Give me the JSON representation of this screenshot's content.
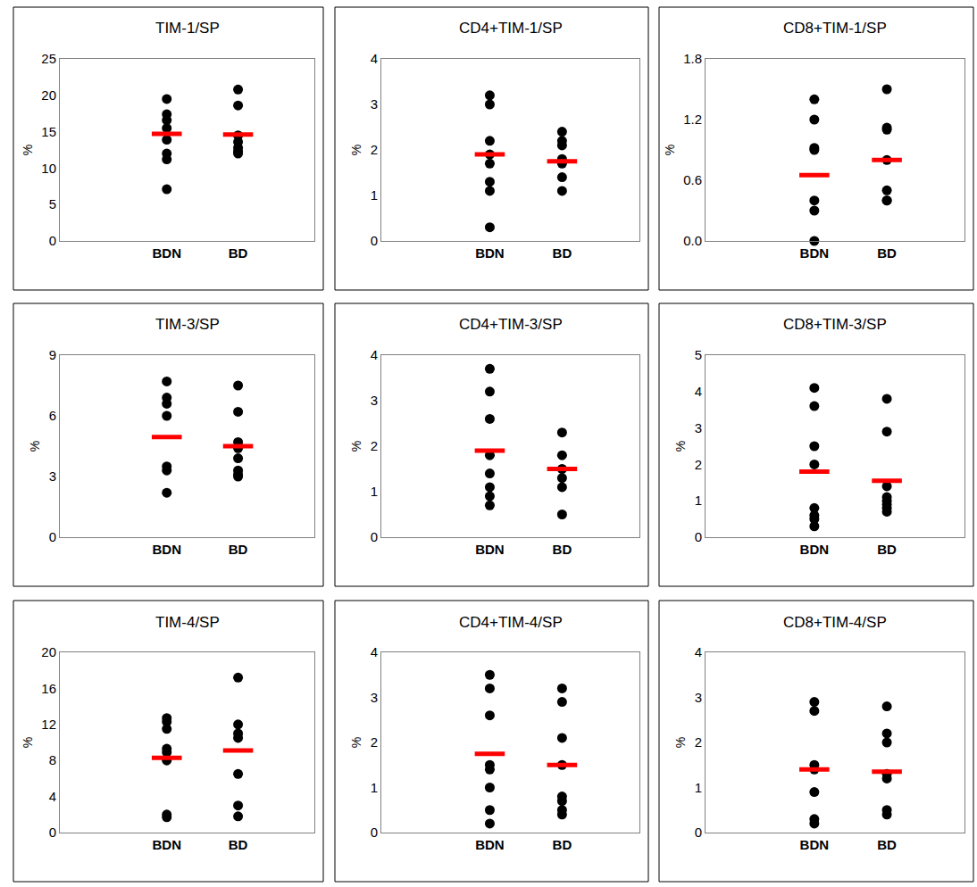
{
  "chart_data": [
    {
      "type": "scatter",
      "title": "TIM-1/SP",
      "y_label": "%",
      "categories": [
        "BDN",
        "BD"
      ],
      "values": [
        [
          19.5,
          17.4,
          16.6,
          15.5,
          13.9,
          12.0,
          11.2,
          7.1
        ],
        [
          20.8,
          18.6,
          14.5,
          13.6,
          12.8,
          12.3,
          12.0
        ]
      ],
      "means": [
        14.7,
        14.6
      ],
      "color": "#000000",
      "ylim": [
        0,
        25
      ],
      "yticks": [
        0,
        5,
        10,
        15,
        20,
        25
      ],
      "grid": false
    },
    {
      "type": "scatter",
      "title": "CD4+TIM-1/SP",
      "y_label": "%",
      "categories": [
        "BDN",
        "BD"
      ],
      "values": [
        [
          3.2,
          3.0,
          2.2,
          1.9,
          1.7,
          1.3,
          1.1,
          0.3
        ],
        [
          2.4,
          2.2,
          2.1,
          1.8,
          1.7,
          1.4,
          1.1
        ]
      ],
      "means": [
        1.9,
        1.75
      ],
      "color": "#000000",
      "ylim": [
        0,
        4
      ],
      "yticks": [
        0,
        1,
        2,
        3,
        4
      ],
      "grid": false
    },
    {
      "type": "scatter",
      "title": "CD8+TIM-1/SP",
      "y_label": "%",
      "categories": [
        "BDN",
        "BD"
      ],
      "values": [
        [
          1.4,
          1.2,
          0.92,
          0.9,
          0.4,
          0.3,
          0.0
        ],
        [
          1.5,
          1.12,
          1.1,
          0.8,
          0.5,
          0.4,
          0.4
        ]
      ],
      "means": [
        0.65,
        0.8
      ],
      "color": "#000000",
      "ylim": [
        0,
        1.8
      ],
      "yticks": [
        {
          "value": 0,
          "label": "0.0"
        },
        0.6,
        1.2,
        1.8
      ],
      "grid": false
    },
    {
      "type": "scatter",
      "title": "TIM-3/SP",
      "y_label": "%",
      "categories": [
        "BDN",
        "BD"
      ],
      "values": [
        [
          7.7,
          6.9,
          6.6,
          6.0,
          3.5,
          3.3,
          2.2
        ],
        [
          7.5,
          6.2,
          4.7,
          4.4,
          3.9,
          3.3,
          3.1,
          3.0
        ]
      ],
      "means": [
        4.95,
        4.5
      ],
      "color": "#000000",
      "ylim": [
        0,
        9
      ],
      "yticks": [
        0,
        3,
        6,
        9
      ],
      "grid": false
    },
    {
      "type": "scatter",
      "title": "CD4+TIM-3/SP",
      "y_label": "%",
      "categories": [
        "BDN",
        "BD"
      ],
      "values": [
        [
          3.7,
          3.2,
          2.6,
          1.8,
          1.4,
          1.1,
          0.9,
          0.7
        ],
        [
          2.3,
          1.8,
          1.5,
          1.3,
          1.1,
          0.5
        ]
      ],
      "means": [
        1.9,
        1.5
      ],
      "color": "#000000",
      "ylim": [
        0,
        4
      ],
      "yticks": [
        0,
        1,
        2,
        3,
        4
      ],
      "grid": false
    },
    {
      "type": "scatter",
      "title": "CD8+TIM-3/SP",
      "y_label": "%",
      "categories": [
        "BDN",
        "BD"
      ],
      "values": [
        [
          4.1,
          3.6,
          2.5,
          2.0,
          0.8,
          0.6,
          0.5,
          0.3
        ],
        [
          3.8,
          2.9,
          1.4,
          1.1,
          1.0,
          0.9,
          0.8,
          0.7
        ]
      ],
      "means": [
        1.8,
        1.55
      ],
      "color": "#000000",
      "ylim": [
        0,
        5
      ],
      "yticks": [
        0,
        1,
        2,
        3,
        4,
        5
      ],
      "grid": false
    },
    {
      "type": "scatter",
      "title": "TIM-4/SP",
      "y_label": "%",
      "categories": [
        "BDN",
        "BD"
      ],
      "values": [
        [
          12.7,
          12.3,
          11.5,
          9.3,
          8.9,
          8.0,
          2.0,
          1.7
        ],
        [
          17.2,
          12.0,
          11.0,
          10.5,
          6.5,
          3.0,
          1.8
        ]
      ],
      "means": [
        8.3,
        9.1
      ],
      "color": "#000000",
      "ylim": [
        0,
        20
      ],
      "yticks": [
        0,
        4,
        8,
        12,
        16,
        20
      ],
      "grid": false
    },
    {
      "type": "scatter",
      "title": "CD4+TIM-4/SP",
      "y_label": "%",
      "categories": [
        "BDN",
        "BD"
      ],
      "values": [
        [
          3.5,
          3.2,
          2.6,
          1.5,
          1.4,
          1.0,
          0.5,
          0.2
        ],
        [
          3.2,
          2.9,
          2.1,
          1.5,
          0.8,
          0.7,
          0.5,
          0.4
        ]
      ],
      "means": [
        1.75,
        1.5
      ],
      "color": "#000000",
      "ylim": [
        0,
        4
      ],
      "yticks": [
        0,
        1,
        2,
        3,
        4
      ],
      "grid": false
    },
    {
      "type": "scatter",
      "title": "CD8+TIM-4/SP",
      "y_label": "%",
      "categories": [
        "BDN",
        "BD"
      ],
      "values": [
        [
          2.9,
          2.7,
          1.5,
          1.4,
          0.9,
          0.3,
          0.2
        ],
        [
          2.8,
          2.2,
          2.0,
          1.3,
          1.2,
          0.5,
          0.4
        ]
      ],
      "means": [
        1.4,
        1.35
      ],
      "color": "#000000",
      "ylim": [
        0,
        4
      ],
      "yticks": [
        0,
        1,
        2,
        3,
        4
      ],
      "grid": false
    }
  ]
}
